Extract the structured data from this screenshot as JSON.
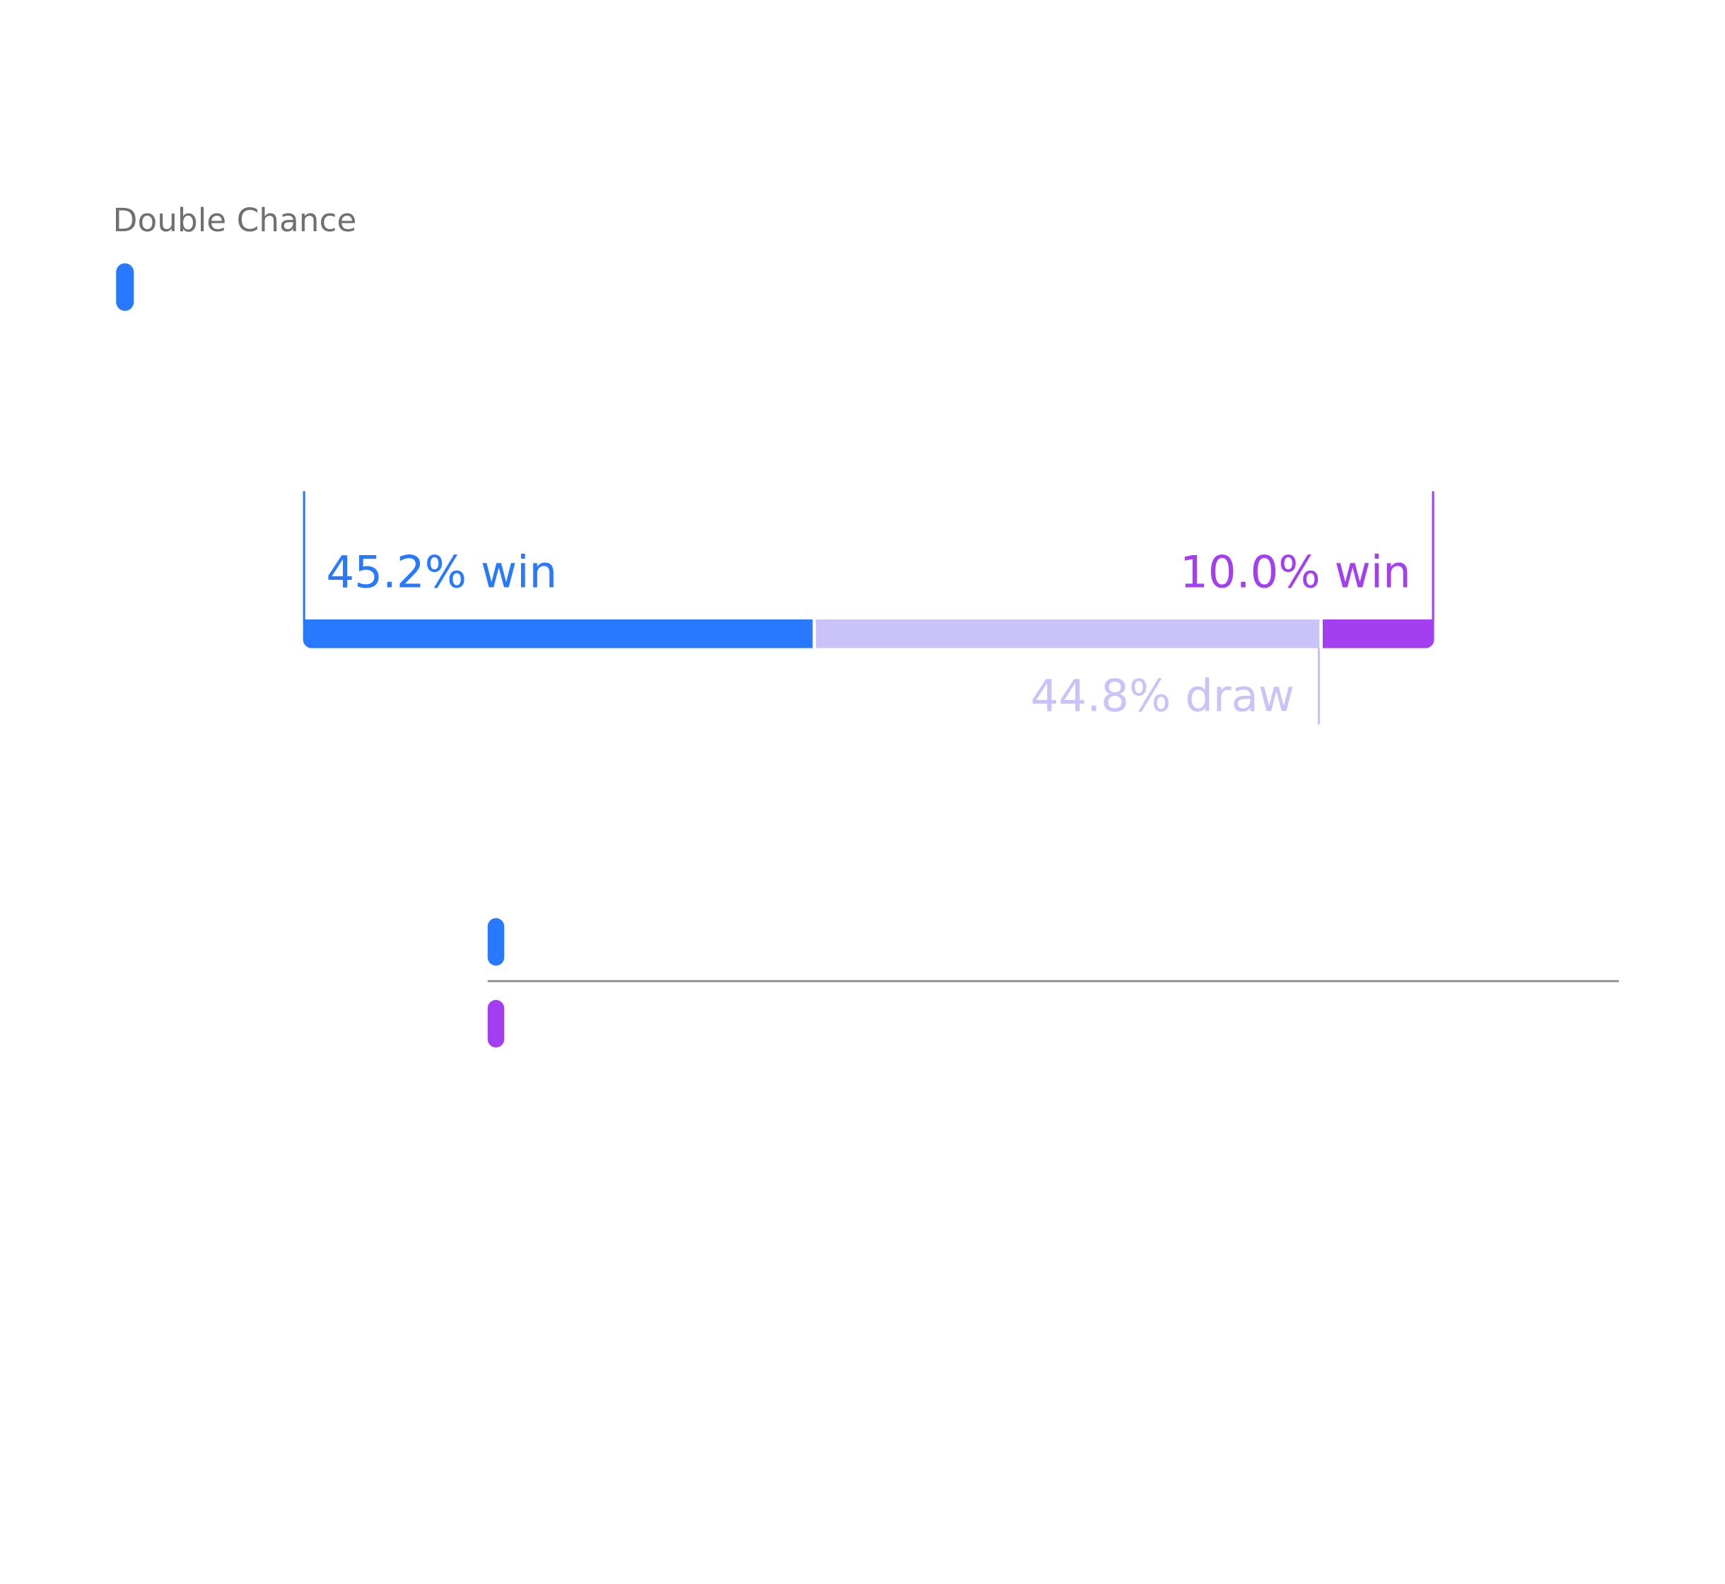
{
  "chart_data": {
    "type": "stacked-bar",
    "title": "Double Chance",
    "values": [
      45.2,
      44.8,
      10.0
    ],
    "value_labels": [
      "45.2% win",
      "44.8% draw",
      "10.0% win"
    ],
    "colors": [
      "#2979ff",
      "#c9c3fa",
      "#a33ff0"
    ],
    "xlim": [
      0,
      100
    ]
  }
}
